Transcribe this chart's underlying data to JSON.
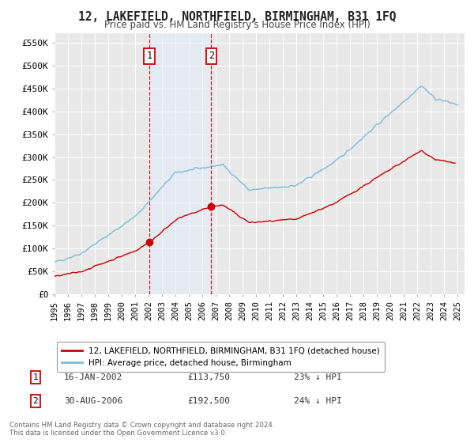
{
  "title": "12, LAKEFIELD, NORTHFIELD, BIRMINGHAM, B31 1FQ",
  "subtitle": "Price paid vs. HM Land Registry's House Price Index (HPI)",
  "background_color": "#ffffff",
  "plot_bg_color": "#e8e8e8",
  "grid_color": "#ffffff",
  "ylim": [
    0,
    570000
  ],
  "xlim_start": 1995.0,
  "xlim_end": 2025.5,
  "yticks": [
    0,
    50000,
    100000,
    150000,
    200000,
    250000,
    300000,
    350000,
    400000,
    450000,
    500000,
    550000
  ],
  "ytick_labels": [
    "£0",
    "£50K",
    "£100K",
    "£150K",
    "£200K",
    "£250K",
    "£300K",
    "£350K",
    "£400K",
    "£450K",
    "£500K",
    "£550K"
  ],
  "xticks": [
    1995,
    1996,
    1997,
    1998,
    1999,
    2000,
    2001,
    2002,
    2003,
    2004,
    2005,
    2006,
    2007,
    2008,
    2009,
    2010,
    2011,
    2012,
    2013,
    2014,
    2015,
    2016,
    2017,
    2018,
    2019,
    2020,
    2021,
    2022,
    2023,
    2024,
    2025
  ],
  "sale1_x": 2002.04,
  "sale1_y": 113750,
  "sale2_x": 2006.66,
  "sale2_y": 192500,
  "hpi_color": "#7bbcde",
  "price_color": "#cc0000",
  "marker_box_color": "#cc0000",
  "shaded_color": "#ddeeff",
  "legend_label_price": "12, LAKEFIELD, NORTHFIELD, BIRMINGHAM, B31 1FQ (detached house)",
  "legend_label_hpi": "HPI: Average price, detached house, Birmingham",
  "annotation1_date": "16-JAN-2002",
  "annotation1_price": "£113,750",
  "annotation1_hpi": "23% ↓ HPI",
  "annotation2_date": "30-AUG-2006",
  "annotation2_price": "£192,500",
  "annotation2_hpi": "24% ↓ HPI",
  "footer1": "Contains HM Land Registry data © Crown copyright and database right 2024.",
  "footer2": "This data is licensed under the Open Government Licence v3.0."
}
